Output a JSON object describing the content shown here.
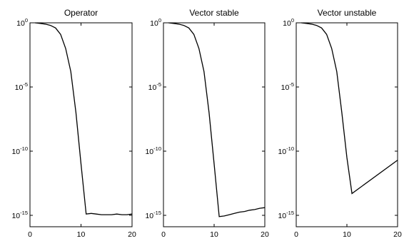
{
  "chart_data": [
    {
      "type": "line",
      "title": "Operator",
      "xlim": [
        0,
        20
      ],
      "ylim_log10": [
        -16,
        0
      ],
      "yscale": "log",
      "x_ticks": [
        0,
        10,
        20
      ],
      "y_ticks": [
        {
          "base": "10",
          "exp": "0"
        },
        {
          "base": "10",
          "exp": "-5"
        },
        {
          "base": "10",
          "exp": "-10"
        },
        {
          "base": "10",
          "exp": "-15"
        }
      ],
      "series": [
        {
          "x": [
            1,
            2,
            3,
            4,
            5,
            6,
            7,
            8,
            9,
            10,
            11,
            12,
            13,
            14,
            15,
            16,
            17,
            18,
            19,
            20
          ],
          "log10_y": [
            0,
            -0.05,
            -0.1,
            -0.2,
            -0.4,
            -0.9,
            -2.0,
            -3.8,
            -7.0,
            -11.0,
            -14.9,
            -14.85,
            -14.9,
            -14.95,
            -14.95,
            -14.95,
            -14.9,
            -14.95,
            -14.95,
            -14.9
          ]
        }
      ]
    },
    {
      "type": "line",
      "title": "Vector stable",
      "xlim": [
        0,
        20
      ],
      "ylim_log10": [
        -16,
        0
      ],
      "yscale": "log",
      "x_ticks": [
        0,
        10,
        20
      ],
      "y_ticks": [
        {
          "base": "10",
          "exp": "0"
        },
        {
          "base": "10",
          "exp": "-5"
        },
        {
          "base": "10",
          "exp": "-10"
        },
        {
          "base": "10",
          "exp": "-15"
        }
      ],
      "series": [
        {
          "x": [
            1,
            2,
            3,
            4,
            5,
            6,
            7,
            8,
            9,
            10,
            11,
            12,
            13,
            14,
            15,
            16,
            17,
            18,
            19,
            20
          ],
          "log10_y": [
            0,
            -0.05,
            -0.1,
            -0.2,
            -0.4,
            -0.9,
            -2.0,
            -3.8,
            -7.0,
            -11.0,
            -15.1,
            -15.05,
            -14.95,
            -14.85,
            -14.75,
            -14.7,
            -14.6,
            -14.55,
            -14.45,
            -14.4
          ]
        }
      ]
    },
    {
      "type": "line",
      "title": "Vector unstable",
      "xlim": [
        0,
        20
      ],
      "ylim_log10": [
        -16,
        0
      ],
      "yscale": "log",
      "x_ticks": [
        0,
        10,
        20
      ],
      "y_ticks": [
        {
          "base": "10",
          "exp": "0"
        },
        {
          "base": "10",
          "exp": "-5"
        },
        {
          "base": "10",
          "exp": "-10"
        },
        {
          "base": "10",
          "exp": "-15"
        }
      ],
      "series": [
        {
          "x": [
            1,
            2,
            3,
            4,
            5,
            6,
            7,
            8,
            9,
            10,
            11,
            20
          ],
          "log10_y": [
            0,
            -0.05,
            -0.1,
            -0.2,
            -0.4,
            -0.9,
            -2.0,
            -3.8,
            -7.0,
            -10.5,
            -13.3,
            -10.7
          ]
        }
      ]
    }
  ]
}
